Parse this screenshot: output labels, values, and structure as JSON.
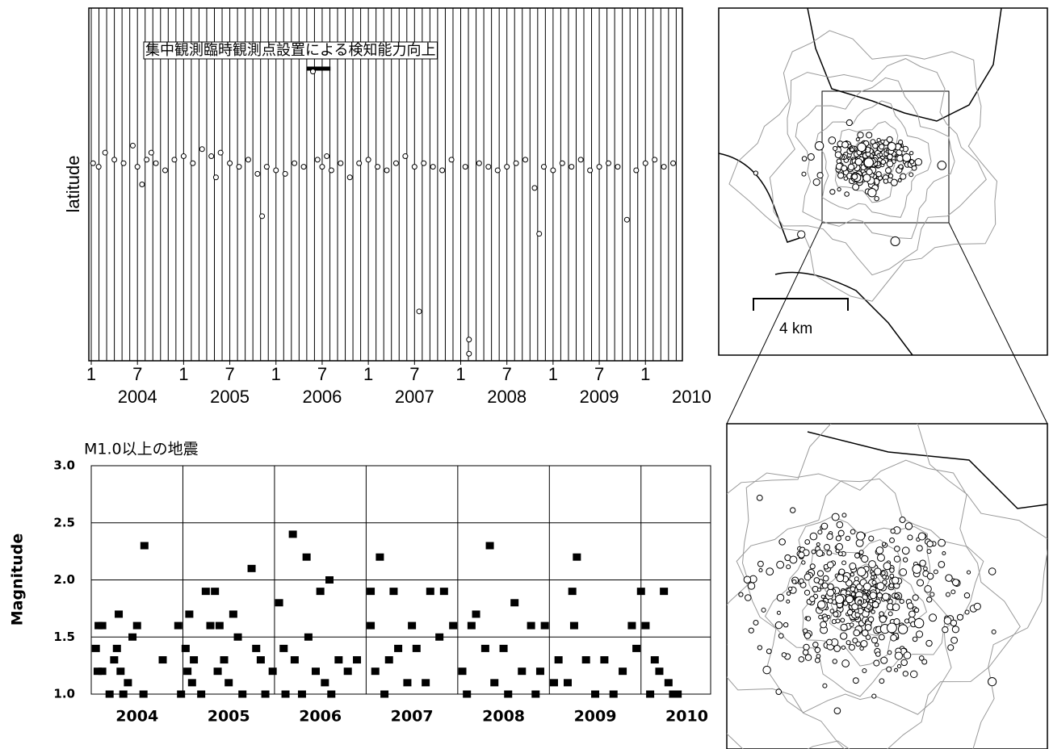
{
  "chart_data": [
    {
      "type": "scatter",
      "y_label": "latitude",
      "annotation": "集中観測臨時観測点設置による検知能力向上",
      "annotation_period": [
        2006.33,
        2006.59
      ],
      "xlim": [
        2004,
        2010.4
      ],
      "ylim": [
        0,
        1
      ],
      "xticks": [
        {
          "value": 2004,
          "label": "1"
        },
        {
          "value": 2004.5,
          "label": "7"
        },
        {
          "value": 2005,
          "label": "1"
        },
        {
          "value": 2005.5,
          "label": "7"
        },
        {
          "value": 2006,
          "label": "1"
        },
        {
          "value": 2006.5,
          "label": "7"
        },
        {
          "value": 2007,
          "label": "1"
        },
        {
          "value": 2007.5,
          "label": "7"
        },
        {
          "value": 2008,
          "label": "1"
        },
        {
          "value": 2008.5,
          "label": "7"
        },
        {
          "value": 2009,
          "label": "1"
        },
        {
          "value": 2009.5,
          "label": "7"
        },
        {
          "value": 2010,
          "label": "1"
        }
      ],
      "categories": [
        "2004",
        "2005",
        "2006",
        "2007",
        "2008",
        "2009",
        "2010"
      ],
      "x": [
        2004.02,
        2004.08,
        2004.15,
        2004.25,
        2004.35,
        2004.45,
        2004.5,
        2004.55,
        2004.6,
        2004.65,
        2004.7,
        2004.8,
        2004.9,
        2005.0,
        2005.1,
        2005.2,
        2005.3,
        2005.35,
        2005.4,
        2005.5,
        2005.6,
        2005.7,
        2005.8,
        2005.85,
        2005.9,
        2006.0,
        2006.1,
        2006.2,
        2006.3,
        2006.4,
        2006.45,
        2006.5,
        2006.55,
        2006.6,
        2006.7,
        2006.8,
        2006.9,
        2007.0,
        2007.1,
        2007.2,
        2007.3,
        2007.4,
        2007.5,
        2007.55,
        2007.6,
        2007.7,
        2007.8,
        2007.9,
        2008.05,
        2008.09,
        2008.09,
        2008.2,
        2008.3,
        2008.4,
        2008.5,
        2008.6,
        2008.7,
        2008.8,
        2008.85,
        2008.9,
        2009.0,
        2009.1,
        2009.2,
        2009.3,
        2009.4,
        2009.5,
        2009.6,
        2009.7,
        2009.8,
        2009.9,
        2010.0,
        2010.1,
        2010.2,
        2010.3
      ],
      "values": [
        0.56,
        0.55,
        0.59,
        0.57,
        0.56,
        0.61,
        0.55,
        0.5,
        0.57,
        0.59,
        0.56,
        0.54,
        0.57,
        0.58,
        0.56,
        0.6,
        0.58,
        0.52,
        0.59,
        0.56,
        0.55,
        0.57,
        0.53,
        0.41,
        0.55,
        0.54,
        0.53,
        0.56,
        0.55,
        0.82,
        0.57,
        0.55,
        0.58,
        0.54,
        0.56,
        0.52,
        0.56,
        0.57,
        0.55,
        0.54,
        0.56,
        0.58,
        0.55,
        0.14,
        0.56,
        0.55,
        0.54,
        0.57,
        0.55,
        0.06,
        0.02,
        0.56,
        0.55,
        0.54,
        0.55,
        0.56,
        0.57,
        0.49,
        0.36,
        0.55,
        0.54,
        0.56,
        0.55,
        0.57,
        0.54,
        0.55,
        0.56,
        0.55,
        0.4,
        0.54,
        0.56,
        0.57,
        0.55,
        0.56
      ]
    },
    {
      "type": "scatter",
      "title": "M1.0以上の地震",
      "y_label": "Magnitude",
      "xlim": [
        2004,
        2010.76
      ],
      "ylim": [
        1,
        3
      ],
      "yticks": [
        {
          "value": 1,
          "label": "1.0"
        },
        {
          "value": 1.5,
          "label": "1.5"
        },
        {
          "value": 2,
          "label": "2.0"
        },
        {
          "value": 2.5,
          "label": "2.5"
        },
        {
          "value": 3,
          "label": "3.0"
        }
      ],
      "categories": [
        "2004",
        "2005",
        "2006",
        "2007",
        "2008",
        "2009",
        "2010"
      ],
      "x": [
        2004.05,
        2004.07,
        2004.08,
        2004.12,
        2004.12,
        2004.2,
        2004.25,
        2004.28,
        2004.3,
        2004.32,
        2004.35,
        2004.4,
        2004.45,
        2004.5,
        2004.58,
        2004.57,
        2004.78,
        2004.95,
        2004.98,
        2005.03,
        2005.05,
        2005.07,
        2005.1,
        2005.12,
        2005.2,
        2005.25,
        2005.3,
        2005.35,
        2005.38,
        2005.4,
        2005.45,
        2005.5,
        2005.55,
        2005.6,
        2005.65,
        2005.75,
        2005.8,
        2005.85,
        2005.9,
        2005.98,
        2006.05,
        2006.1,
        2006.12,
        2006.2,
        2006.22,
        2006.3,
        2006.35,
        2006.37,
        2006.45,
        2006.5,
        2006.55,
        2006.6,
        2006.62,
        2006.7,
        2006.8,
        2006.9,
        2007.05,
        2007.05,
        2007.1,
        2007.15,
        2007.2,
        2007.25,
        2007.3,
        2007.35,
        2007.45,
        2007.5,
        2007.55,
        2007.65,
        2007.7,
        2007.8,
        2007.85,
        2007.95,
        2008.05,
        2008.1,
        2008.15,
        2008.2,
        2008.3,
        2008.35,
        2008.4,
        2008.5,
        2008.55,
        2008.62,
        2008.7,
        2008.8,
        2008.85,
        2008.9,
        2008.95,
        2009.05,
        2009.1,
        2009.2,
        2009.25,
        2009.27,
        2009.3,
        2009.4,
        2009.5,
        2009.6,
        2009.7,
        2009.8,
        2009.9,
        2009.95,
        2010.0,
        2010.05,
        2010.1,
        2010.15,
        2010.2,
        2010.25,
        2010.3,
        2010.35,
        2010.4
      ],
      "values": [
        1.4,
        1.2,
        1.6,
        1.6,
        1.2,
        1.0,
        1.3,
        1.4,
        1.7,
        1.2,
        1.0,
        1.1,
        1.5,
        1.6,
        2.3,
        1.0,
        1.3,
        1.6,
        1.0,
        1.4,
        1.2,
        1.7,
        1.1,
        1.3,
        1.0,
        1.9,
        1.6,
        1.9,
        1.2,
        1.6,
        1.3,
        1.1,
        1.7,
        1.5,
        1.0,
        2.1,
        1.4,
        1.3,
        1.0,
        1.2,
        1.8,
        1.4,
        1.0,
        2.4,
        1.3,
        1.0,
        2.2,
        1.5,
        1.2,
        1.9,
        1.1,
        2.0,
        1.0,
        1.3,
        1.2,
        1.3,
        1.9,
        1.6,
        1.2,
        2.2,
        1.0,
        1.3,
        1.9,
        1.4,
        1.1,
        1.6,
        1.4,
        1.1,
        1.9,
        1.5,
        1.9,
        1.6,
        1.2,
        1.0,
        1.6,
        1.7,
        1.4,
        2.3,
        1.1,
        1.4,
        1.0,
        1.8,
        1.2,
        1.6,
        1.0,
        1.2,
        1.6,
        1.1,
        1.3,
        1.1,
        1.9,
        1.6,
        2.2,
        1.3,
        1.0,
        1.3,
        1.0,
        1.2,
        1.6,
        1.4,
        1.9,
        1.6,
        1.0,
        1.3,
        1.2,
        1.9,
        1.1,
        1.0,
        1.0
      ]
    }
  ],
  "map": {
    "scale_label": "4 km"
  }
}
